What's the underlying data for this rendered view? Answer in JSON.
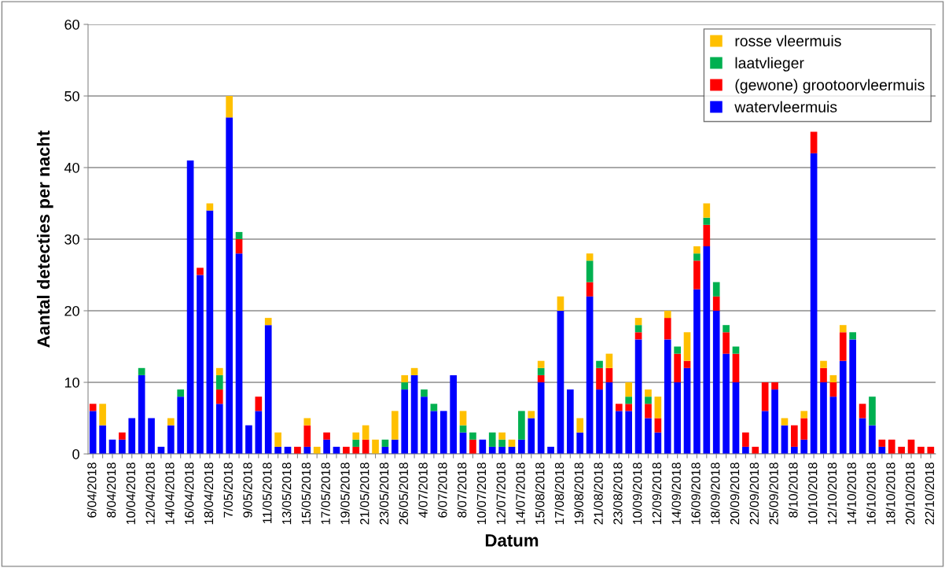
{
  "chart_data": {
    "type": "bar",
    "stacked": true,
    "xlabel": "Datum",
    "ylabel": "Aantal detecties per nacht",
    "categories": [
      "6/04/2018",
      null,
      "8/04/2018",
      null,
      "10/04/2018",
      null,
      "12/04/2018",
      null,
      "14/04/2018",
      null,
      "16/04/2018",
      null,
      "18/04/2018",
      null,
      "7/05/2018",
      null,
      "9/05/2018",
      null,
      "11/05/2018",
      null,
      "13/05/2018",
      null,
      "15/05/2018",
      null,
      "17/05/2018",
      null,
      "19/05/2018",
      null,
      "21/05/2018",
      null,
      "23/05/2018",
      null,
      "26/05/2018",
      null,
      "4/07/2018",
      null,
      "6/07/2018",
      null,
      "8/07/2018",
      null,
      "10/07/2018",
      null,
      "12/07/2018",
      null,
      "14/07/2018",
      null,
      "15/08/2018",
      null,
      "17/08/2018",
      null,
      "19/08/2018",
      null,
      "21/08/2018",
      null,
      "23/08/2018",
      null,
      "10/09/2018",
      null,
      "12/09/2018",
      null,
      "14/09/2018",
      null,
      "16/09/2018",
      null,
      "18/09/2018",
      null,
      "20/09/2018",
      null,
      "22/09/2018",
      null,
      "25/09/2018",
      null,
      "8/10/2018",
      null,
      "10/10/2018",
      null,
      "12/10/2018",
      null,
      "14/10/2018",
      null,
      "16/10/2018",
      null,
      "18/10/2018",
      null,
      "20/10/2018",
      null,
      "22/10/2018"
    ],
    "series": [
      {
        "name": "watervleermuis",
        "color": "#0000ff",
        "values": [
          6,
          4,
          2,
          2,
          5,
          11,
          5,
          1,
          4,
          8,
          41,
          25,
          34,
          7,
          47,
          28,
          4,
          6,
          18,
          1,
          1,
          0,
          1,
          0,
          2,
          1,
          0,
          0,
          0,
          0,
          1,
          2,
          9,
          11,
          8,
          6,
          6,
          11,
          3,
          0,
          2,
          1,
          1,
          1,
          2,
          5,
          10,
          1,
          20,
          9,
          3,
          22,
          9,
          10,
          6,
          6,
          16,
          5,
          3,
          16,
          10,
          12,
          23,
          29,
          20,
          14,
          10,
          1,
          0,
          6,
          9,
          4,
          1,
          2,
          42,
          10,
          8,
          13,
          16,
          5,
          4,
          1,
          0,
          0,
          0,
          0,
          0
        ]
      },
      {
        "name": "(gewone) grootoorvleermuis",
        "color": "#ff0000",
        "values": [
          1,
          0,
          0,
          1,
          0,
          0,
          0,
          0,
          0,
          0,
          0,
          1,
          0,
          2,
          0,
          2,
          0,
          2,
          0,
          0,
          0,
          1,
          3,
          0,
          1,
          0,
          1,
          1,
          2,
          0,
          0,
          0,
          0,
          0,
          0,
          0,
          0,
          0,
          0,
          2,
          0,
          0,
          0,
          0,
          0,
          0,
          1,
          0,
          0,
          0,
          0,
          2,
          3,
          2,
          1,
          1,
          1,
          2,
          2,
          3,
          4,
          1,
          4,
          3,
          2,
          3,
          4,
          2,
          1,
          4,
          1,
          0,
          3,
          3,
          3,
          2,
          2,
          4,
          0,
          2,
          0,
          1,
          2,
          1,
          2,
          1,
          1
        ]
      },
      {
        "name": "laatvlieger",
        "color": "#00b050",
        "values": [
          0,
          0,
          0,
          0,
          0,
          1,
          0,
          0,
          0,
          1,
          0,
          0,
          0,
          2,
          0,
          1,
          0,
          0,
          0,
          0,
          0,
          0,
          0,
          0,
          0,
          0,
          0,
          1,
          0,
          0,
          1,
          0,
          1,
          0,
          1,
          1,
          0,
          0,
          1,
          1,
          0,
          2,
          1,
          0,
          4,
          0,
          1,
          0,
          0,
          0,
          0,
          3,
          1,
          0,
          0,
          1,
          1,
          1,
          0,
          0,
          1,
          0,
          1,
          1,
          2,
          1,
          1,
          0,
          0,
          0,
          0,
          0,
          0,
          0,
          0,
          0,
          0,
          0,
          1,
          0,
          4,
          0,
          0,
          0,
          0,
          0,
          0
        ]
      },
      {
        "name": "rosse vleermuis",
        "color": "#ffc000",
        "values": [
          0,
          3,
          0,
          0,
          0,
          0,
          0,
          0,
          1,
          0,
          0,
          0,
          1,
          1,
          3,
          0,
          0,
          0,
          1,
          2,
          0,
          0,
          1,
          1,
          0,
          0,
          0,
          1,
          2,
          2,
          0,
          4,
          1,
          1,
          0,
          0,
          0,
          0,
          2,
          0,
          0,
          0,
          1,
          1,
          0,
          1,
          1,
          0,
          2,
          0,
          2,
          1,
          0,
          2,
          0,
          2,
          1,
          1,
          3,
          1,
          0,
          4,
          1,
          2,
          0,
          0,
          0,
          0,
          0,
          0,
          0,
          1,
          0,
          1,
          0,
          1,
          1,
          1,
          0,
          0,
          0,
          0,
          0,
          0,
          0,
          0,
          0
        ]
      }
    ],
    "ylim": [
      0,
      60
    ],
    "yticks": [
      0,
      10,
      20,
      30,
      40,
      50,
      60
    ],
    "grid": "y",
    "legend": "top right"
  }
}
